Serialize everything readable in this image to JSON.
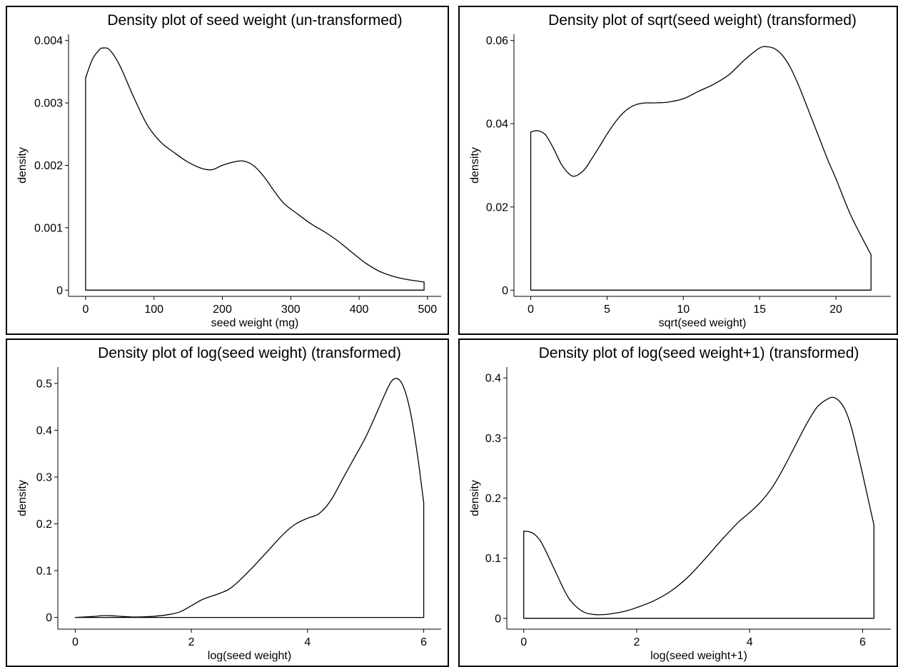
{
  "chart_data": [
    {
      "type": "area",
      "title": "Density plot of seed weight (un-transformed)",
      "xlabel": "seed weight (mg)",
      "ylabel": "density",
      "xlim": [
        -25,
        520
      ],
      "ylim": [
        -0.0001,
        0.0041
      ],
      "xticks": [
        0,
        100,
        200,
        300,
        400,
        500
      ],
      "xtick_labels": [
        "0",
        "100",
        "200",
        "300",
        "400",
        "500"
      ],
      "yticks": [
        0,
        0.001,
        0.002,
        0.003,
        0.004
      ],
      "ytick_labels": [
        "0",
        "0.001",
        "0.002",
        "0.003",
        "0.004"
      ],
      "grid": false,
      "x": [
        0,
        10,
        20,
        25,
        35,
        50,
        70,
        90,
        110,
        130,
        150,
        170,
        185,
        200,
        215,
        230,
        245,
        260,
        275,
        290,
        310,
        330,
        350,
        370,
        390,
        410,
        430,
        450,
        470,
        495
      ],
      "y": [
        0.0034,
        0.0037,
        0.00385,
        0.00388,
        0.00385,
        0.0036,
        0.0031,
        0.00265,
        0.00237,
        0.0022,
        0.00205,
        0.00195,
        0.00193,
        0.002,
        0.00205,
        0.00207,
        0.002,
        0.00183,
        0.0016,
        0.00139,
        0.00122,
        0.00106,
        0.00093,
        0.00078,
        0.0006,
        0.00043,
        0.0003,
        0.00022,
        0.00017,
        0.00013
      ]
    },
    {
      "type": "area",
      "title": "Density plot of sqrt(seed weight) (transformed)",
      "xlabel": "sqrt(seed weight)",
      "ylabel": "density",
      "xlim": [
        -1.1,
        23.6
      ],
      "ylim": [
        -0.0015,
        0.0615
      ],
      "xticks": [
        0,
        5,
        10,
        15,
        20
      ],
      "xtick_labels": [
        "0",
        "5",
        "10",
        "15",
        "20"
      ],
      "yticks": [
        0,
        0.02,
        0.04,
        0.06
      ],
      "ytick_labels": [
        "0",
        "0.02",
        "0.04",
        "0.06"
      ],
      "grid": false,
      "x": [
        0,
        0.3,
        0.6,
        1,
        1.5,
        2,
        2.5,
        2.9,
        3.5,
        4,
        4.5,
        5,
        5.5,
        6,
        6.5,
        7,
        7.5,
        8,
        9,
        10,
        11,
        12,
        13,
        14,
        15,
        15.5,
        16,
        16.5,
        17,
        17.5,
        18,
        18.5,
        19,
        19.5,
        20,
        21,
        22.3
      ],
      "y": [
        0.038,
        0.0383,
        0.0382,
        0.0372,
        0.034,
        0.0303,
        0.028,
        0.0274,
        0.0289,
        0.0316,
        0.0345,
        0.0375,
        0.0402,
        0.0424,
        0.0439,
        0.0447,
        0.045,
        0.045,
        0.0452,
        0.046,
        0.0478,
        0.0495,
        0.0518,
        0.0553,
        0.0582,
        0.0585,
        0.058,
        0.0564,
        0.0536,
        0.0497,
        0.0451,
        0.0404,
        0.0357,
        0.031,
        0.0268,
        0.0178,
        0.0085
      ]
    },
    {
      "type": "area",
      "title": "Density plot of log(seed weight) (transformed)",
      "xlabel": "log(seed weight)",
      "ylabel": "density",
      "xlim": [
        -0.3,
        6.3
      ],
      "ylim": [
        -0.025,
        0.535
      ],
      "xticks": [
        0,
        2,
        4,
        6
      ],
      "xtick_labels": [
        "0",
        "2",
        "4",
        "6"
      ],
      "yticks": [
        0,
        0.1,
        0.2,
        0.3,
        0.4,
        0.5
      ],
      "ytick_labels": [
        "0",
        "0.1",
        "0.2",
        "0.3",
        "0.4",
        "0.5"
      ],
      "grid": false,
      "x": [
        0,
        0.3,
        0.5,
        0.7,
        1,
        1.3,
        1.6,
        1.8,
        2,
        2.2,
        2.5,
        2.7,
        3,
        3.3,
        3.6,
        3.8,
        4,
        4.2,
        4.4,
        4.6,
        4.8,
        5,
        5.2,
        5.4,
        5.5,
        5.6,
        5.7,
        5.8,
        5.9,
        6
      ],
      "y": [
        0,
        0.002,
        0.004,
        0.003,
        0.001,
        0.002,
        0.006,
        0.012,
        0.025,
        0.039,
        0.052,
        0.065,
        0.1,
        0.14,
        0.18,
        0.2,
        0.212,
        0.222,
        0.25,
        0.295,
        0.34,
        0.385,
        0.44,
        0.495,
        0.51,
        0.505,
        0.475,
        0.42,
        0.34,
        0.245
      ]
    },
    {
      "type": "area",
      "title": "Density plot of log(seed weight+1) (transformed)",
      "xlabel": "log(seed weight+1)",
      "ylabel": "density",
      "xlim": [
        -0.3,
        6.5
      ],
      "ylim": [
        -0.018,
        0.418
      ],
      "xticks": [
        0,
        2,
        4,
        6
      ],
      "xtick_labels": [
        "0",
        "2",
        "4",
        "6"
      ],
      "yticks": [
        0,
        0.1,
        0.2,
        0.3,
        0.4
      ],
      "ytick_labels": [
        "0",
        "0.1",
        "0.2",
        "0.3",
        "0.4"
      ],
      "grid": false,
      "x": [
        0,
        0.1,
        0.2,
        0.3,
        0.4,
        0.5,
        0.6,
        0.7,
        0.8,
        0.9,
        1,
        1.1,
        1.2,
        1.3,
        1.5,
        1.8,
        2,
        2.3,
        2.6,
        2.9,
        3.2,
        3.5,
        3.8,
        4,
        4.2,
        4.4,
        4.6,
        4.8,
        5,
        5.2,
        5.4,
        5.5,
        5.6,
        5.7,
        5.8,
        5.9,
        6,
        6.2
      ],
      "y": [
        0.145,
        0.144,
        0.139,
        0.128,
        0.11,
        0.09,
        0.07,
        0.05,
        0.033,
        0.022,
        0.014,
        0.009,
        0.007,
        0.006,
        0.007,
        0.012,
        0.018,
        0.029,
        0.045,
        0.068,
        0.098,
        0.13,
        0.16,
        0.176,
        0.194,
        0.218,
        0.25,
        0.286,
        0.322,
        0.352,
        0.366,
        0.367,
        0.36,
        0.345,
        0.318,
        0.28,
        0.24,
        0.155
      ]
    }
  ]
}
